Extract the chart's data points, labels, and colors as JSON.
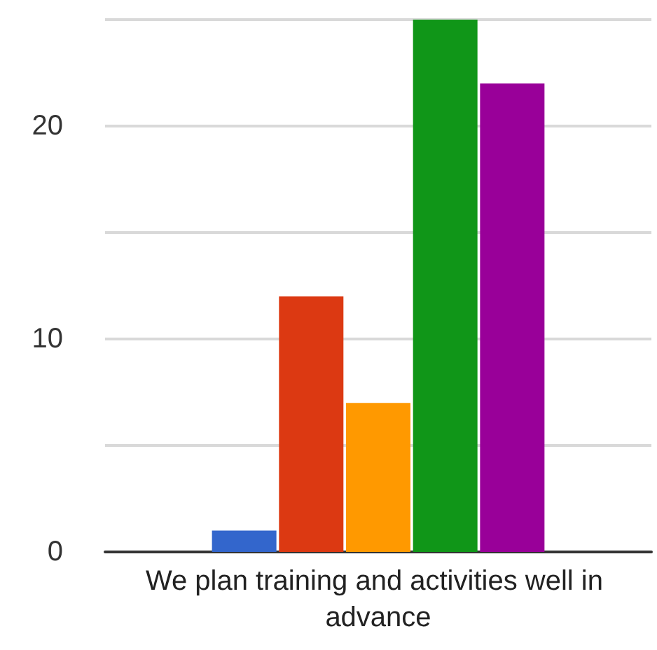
{
  "chart_data": {
    "type": "bar",
    "categories": [
      "We plan training and activities well in advance"
    ],
    "series": [
      {
        "color": "#3366cc",
        "values": [
          1
        ]
      },
      {
        "color": "#dc3912",
        "values": [
          12
        ]
      },
      {
        "color": "#ff9900",
        "values": [
          7
        ]
      },
      {
        "color": "#109618",
        "values": [
          25
        ]
      },
      {
        "color": "#990099",
        "values": [
          22
        ]
      }
    ],
    "ylim": [
      0,
      25
    ],
    "yticks": [
      0,
      {
        "value": 5,
        "label": null
      },
      10,
      {
        "value": 15,
        "label": null
      },
      20,
      {
        "value": 25,
        "label": null
      }
    ],
    "grid": "y"
  }
}
